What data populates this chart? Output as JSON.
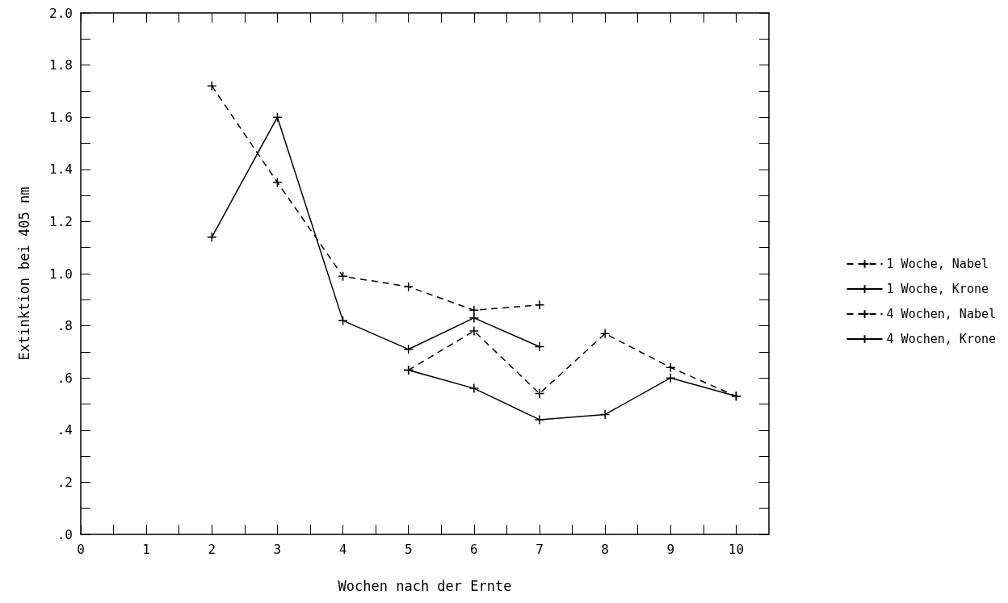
{
  "chart_data": {
    "type": "line",
    "xlabel": "Wochen nach der Ernte",
    "ylabel": "Extinktion bei 405 nm",
    "xlim": [
      0,
      10.5
    ],
    "ylim": [
      0,
      2.0
    ],
    "xticks": [
      0,
      {
        "value": 0.5,
        "label": null
      },
      1,
      {
        "value": 1.5,
        "label": null
      },
      2,
      {
        "value": 2.5,
        "label": null
      },
      3,
      {
        "value": 3.5,
        "label": null
      },
      4,
      {
        "value": 4.5,
        "label": null
      },
      5,
      {
        "value": 5.5,
        "label": null
      },
      6,
      {
        "value": 6.5,
        "label": null
      },
      7,
      {
        "value": 7.5,
        "label": null
      },
      8,
      {
        "value": 8.5,
        "label": null
      },
      9,
      {
        "value": 9.5,
        "label": null
      },
      10
    ],
    "yticks": [
      {
        "value": 0,
        "label": ".0"
      },
      {
        "value": 0.1,
        "label": null
      },
      {
        "value": 0.2,
        "label": ".2"
      },
      {
        "value": 0.3,
        "label": null
      },
      {
        "value": 0.4,
        "label": ".4"
      },
      {
        "value": 0.5,
        "label": null
      },
      {
        "value": 0.6,
        "label": ".6"
      },
      {
        "value": 0.7,
        "label": null
      },
      {
        "value": 0.8,
        "label": ".8"
      },
      {
        "value": 0.9,
        "label": null
      },
      {
        "value": 1.0,
        "label": "1.0"
      },
      {
        "value": 1.1,
        "label": null
      },
      {
        "value": 1.2,
        "label": "1.2"
      },
      {
        "value": 1.3,
        "label": null
      },
      {
        "value": 1.4,
        "label": "1.4"
      },
      {
        "value": 1.5,
        "label": null
      },
      {
        "value": 1.6,
        "label": "1.6"
      },
      {
        "value": 1.7,
        "label": null
      },
      {
        "value": 1.8,
        "label": "1.8"
      },
      {
        "value": 1.9,
        "label": null
      },
      {
        "value": 2.0,
        "label": "2.0"
      }
    ],
    "grid": false,
    "legend": "right",
    "marker": "cross",
    "series": [
      {
        "name": "1 Woche, Nabel",
        "color": "#000000",
        "line_style": "dashed",
        "x": [
          2,
          3,
          4,
          5,
          6,
          7
        ],
        "values": [
          1.72,
          1.35,
          0.99,
          0.95,
          0.86,
          0.88
        ]
      },
      {
        "name": "1 Woche, Krone",
        "color": "#000000",
        "line_style": "solid",
        "x": [
          2,
          3,
          4,
          5,
          6,
          7
        ],
        "values": [
          1.14,
          1.6,
          0.82,
          0.71,
          0.83,
          0.72
        ]
      },
      {
        "name": "4 Wochen, Nabel",
        "color": "#000000",
        "line_style": "dashed",
        "x": [
          5,
          6,
          7,
          8,
          9,
          10
        ],
        "values": [
          0.63,
          0.78,
          0.54,
          0.77,
          0.64,
          0.53
        ]
      },
      {
        "name": "4 Wochen, Krone",
        "color": "#000000",
        "line_style": "solid",
        "x": [
          5,
          6,
          7,
          8,
          9,
          10
        ],
        "values": [
          0.63,
          0.56,
          0.44,
          0.46,
          0.6,
          0.53
        ]
      }
    ]
  }
}
